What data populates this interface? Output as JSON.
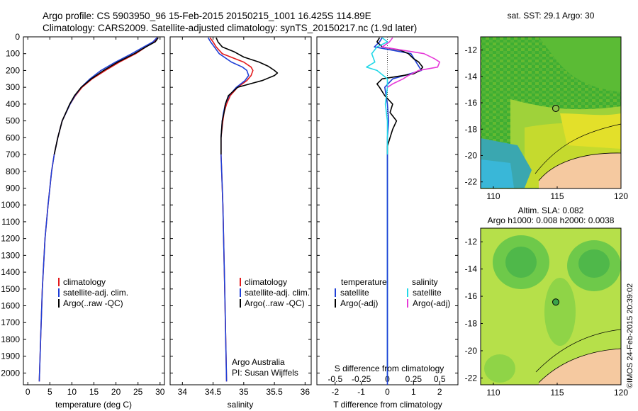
{
  "header": {
    "line1": "Argo profile: CS 5903950_96 15-Feb-2015 20150215_1001 16.425S 114.89E",
    "line2": "Climatology: CARS2009. Satellite-adjusted climatology: synTS_20150217.nc (1.9d later)"
  },
  "colors": {
    "clim": "#e31a1c",
    "sat": "#1f3fd6",
    "argo": "#000000",
    "sal_sat": "#22d8e8",
    "sal_argo": "#e63ad8",
    "land": "#f5c9a0"
  },
  "depth_axis": {
    "ticks": [
      0,
      100,
      200,
      300,
      400,
      500,
      600,
      700,
      800,
      900,
      1000,
      1100,
      1200,
      1300,
      1400,
      1500,
      1600,
      1700,
      1800,
      1900,
      2000
    ],
    "range": [
      0,
      2070
    ]
  },
  "chart_data": [
    {
      "type": "line",
      "id": "temp",
      "xlabel": "temperature (deg C)",
      "ylabel": "depth",
      "xlim": [
        -1,
        31
      ],
      "ylim": [
        2070,
        0
      ],
      "xticks": [
        0,
        5,
        10,
        15,
        20,
        25,
        30
      ],
      "legend": [
        "climatology",
        "satellite-adj. clim.",
        "Argo(..raw -QC)"
      ],
      "series": [
        {
          "name": "climatology",
          "color": "clim",
          "depth": [
            5,
            30,
            60,
            100,
            150,
            200,
            250,
            300,
            350,
            400,
            500,
            600,
            700,
            800,
            1000,
            1200,
            1500,
            1800,
            2050
          ],
          "values": [
            29.5,
            28.7,
            26.8,
            24.5,
            20.8,
            17.6,
            14.6,
            12.3,
            10.8,
            9.6,
            7.8,
            6.8,
            6.0,
            5.4,
            4.6,
            3.9,
            3.3,
            2.9,
            2.6
          ]
        },
        {
          "name": "satellite-adj. clim.",
          "color": "sat",
          "depth": [
            5,
            30,
            60,
            100,
            150,
            200,
            250,
            300,
            350,
            400,
            500,
            600,
            700,
            800,
            1000,
            1200,
            1500,
            1800,
            2050
          ],
          "values": [
            29.3,
            28.4,
            26.3,
            23.6,
            19.9,
            16.6,
            14.1,
            12.1,
            10.7,
            9.6,
            7.8,
            6.8,
            6.0,
            5.4,
            4.6,
            3.9,
            3.3,
            2.9,
            2.6
          ]
        },
        {
          "name": "Argo(..raw -QC)",
          "color": "argo",
          "depth": [
            5,
            30,
            60,
            100,
            150,
            200,
            250,
            300,
            350,
            400,
            500,
            600,
            700
          ],
          "values": [
            29.6,
            28.9,
            26.8,
            24.2,
            20.4,
            17.2,
            14.4,
            12.1,
            10.6,
            9.5,
            7.8,
            6.8,
            6.0
          ]
        }
      ]
    },
    {
      "type": "line",
      "id": "sal",
      "xlabel": "salinity",
      "ylabel": "depth",
      "xlim": [
        33.8,
        36.1
      ],
      "ylim": [
        2070,
        0
      ],
      "xticks": [
        34,
        34.5,
        35,
        35.5,
        36
      ],
      "legend": [
        "climatology",
        "satellite-adj. clim.",
        "Argo(..raw -QC)"
      ],
      "annotation": [
        "Argo Australia",
        "PI: Susan Wijffels"
      ],
      "series": [
        {
          "name": "climatology",
          "color": "clim",
          "depth": [
            5,
            30,
            60,
            100,
            150,
            180,
            200,
            230,
            260,
            300,
            350,
            400,
            450,
            500,
            600,
            700,
            800,
            1000,
            1500,
            2050
          ],
          "values": [
            34.45,
            34.5,
            34.55,
            34.65,
            35.0,
            35.12,
            35.15,
            35.12,
            35.05,
            34.9,
            34.78,
            34.72,
            34.68,
            34.66,
            34.63,
            34.63,
            34.64,
            34.66,
            34.69,
            34.72
          ]
        },
        {
          "name": "satellite-adj. clim.",
          "color": "sat",
          "depth": [
            5,
            30,
            60,
            100,
            150,
            180,
            200,
            230,
            260,
            300,
            350,
            400,
            450,
            500,
            600,
            700,
            800,
            1000,
            1500,
            2050
          ],
          "values": [
            34.42,
            34.46,
            34.52,
            34.6,
            34.8,
            34.98,
            35.05,
            35.08,
            35.02,
            34.88,
            34.76,
            34.7,
            34.67,
            34.65,
            34.63,
            34.63,
            34.64,
            34.66,
            34.69,
            34.72
          ]
        },
        {
          "name": "Argo(..raw -QC)",
          "color": "argo",
          "depth": [
            5,
            30,
            60,
            90,
            120,
            150,
            175,
            200,
            215,
            230,
            260,
            280,
            300,
            350,
            400,
            450,
            500,
            600,
            700
          ],
          "values": [
            34.55,
            34.58,
            34.65,
            34.85,
            35.0,
            35.25,
            35.4,
            35.5,
            35.55,
            35.5,
            35.3,
            35.1,
            34.9,
            34.75,
            34.7,
            34.68,
            34.65,
            34.63,
            34.63
          ]
        }
      ]
    },
    {
      "type": "line",
      "id": "diff",
      "xlabel": "T difference from climatology",
      "top_label": "S difference from climatology",
      "ylabel": "depth",
      "xlim": [
        -2.7,
        2.7
      ],
      "ylim": [
        2070,
        0
      ],
      "xticks": [
        -2,
        -1,
        0,
        1,
        2
      ],
      "top_ticks": [
        "-0.5",
        "-0.25",
        "0",
        "0.25",
        "0.5"
      ],
      "legend_temperature": {
        "title": "temperature",
        "items": [
          "satellite",
          "Argo(-adj)"
        ]
      },
      "legend_salinity": {
        "title": "salinity",
        "items": [
          "satellite",
          "Argo(-adj)"
        ]
      },
      "series": [
        {
          "name": "T satellite",
          "color": "sat",
          "depth": [
            5,
            30,
            60,
            100,
            150,
            200,
            250,
            300,
            400,
            500,
            600,
            800,
            1000,
            1500,
            2050
          ],
          "values": [
            -0.2,
            -0.3,
            -0.5,
            0.9,
            1.1,
            1.3,
            0.2,
            -0.1,
            0,
            0.05,
            0,
            0,
            0,
            0,
            0
          ]
        },
        {
          "name": "T Argo(-adj)",
          "color": "argo",
          "depth": [
            5,
            30,
            60,
            80,
            100,
            130,
            150,
            180,
            200,
            220,
            250,
            280,
            300,
            350,
            400,
            450,
            500,
            550,
            600,
            650,
            700
          ],
          "values": [
            -0.3,
            -0.4,
            -0.2,
            0.5,
            0.8,
            1.0,
            1.2,
            1.35,
            1.25,
            1.0,
            -0.2,
            -0.4,
            -0.3,
            -0.1,
            0.2,
            0.1,
            0.35,
            0.2,
            0.1,
            0,
            0
          ]
        },
        {
          "name": "S satellite",
          "color": "sal_sat",
          "depth": [
            5,
            30,
            60,
            100,
            150,
            180,
            200,
            250,
            300,
            400,
            500,
            600,
            800,
            1000,
            1500,
            2050
          ],
          "values": [
            -0.05,
            0,
            -0.1,
            -0.15,
            -0.12,
            -0.2,
            -0.1,
            0,
            0,
            -0.02,
            0,
            0,
            0,
            0,
            0,
            0
          ]
        },
        {
          "name": "S Argo(-adj)",
          "color": "sal_argo",
          "depth": [
            5,
            30,
            60,
            100,
            130,
            150,
            180,
            200,
            230,
            250,
            280,
            300
          ],
          "values": [
            0.05,
            0.02,
            -0.05,
            0.35,
            0.45,
            0.5,
            0.48,
            0.3,
            0.2,
            0.15,
            0.05,
            0
          ]
        }
      ]
    },
    {
      "type": "heatmap",
      "id": "sst_map",
      "title": "sat. SST: 29.1 Argo: 30",
      "xticks": [
        110,
        115,
        120
      ],
      "yticks": [
        -12,
        -14,
        -16,
        -18,
        -20,
        -22
      ],
      "xlim": [
        109,
        120
      ],
      "ylim": [
        -22.5,
        -11
      ],
      "float_position": {
        "lon": 114.89,
        "lat": -16.425
      }
    },
    {
      "type": "heatmap",
      "id": "sla_map",
      "title": "Altim. SLA: 0.082",
      "subtitle": "Argo h1000: 0.008 h2000: 0.0038",
      "xticks": [
        110,
        115,
        120
      ],
      "yticks": [
        -12,
        -14,
        -16,
        -18,
        -20,
        -22
      ],
      "xlim": [
        109,
        120
      ],
      "ylim": [
        -22.5,
        -11
      ],
      "float_position": {
        "lon": 114.89,
        "lat": -16.425
      }
    }
  ],
  "timestamp": "©IMOS 24-Feb-2015 20:39:02"
}
